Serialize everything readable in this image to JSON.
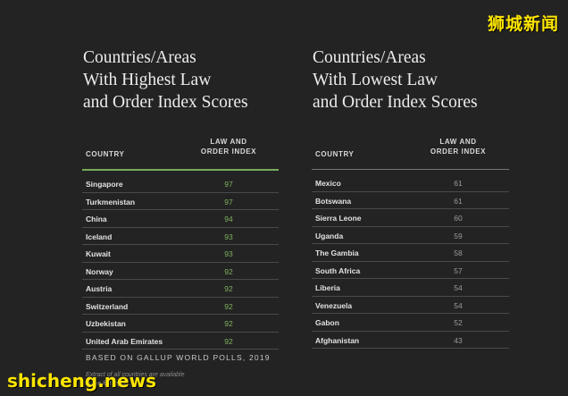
{
  "watermark_top": "狮城新闻",
  "watermark_bottom": "shicheng.news",
  "left_table": {
    "title": [
      "Countries/Areas",
      "With Highest Law",
      "and Order Index Scores"
    ],
    "col_country": "COUNTRY",
    "col_index": [
      "LAW AND",
      "ORDER INDEX"
    ],
    "rows": [
      {
        "country": "Singapore",
        "score": "97"
      },
      {
        "country": "Turkmenistan",
        "score": "97"
      },
      {
        "country": "China",
        "score": "94"
      },
      {
        "country": "Iceland",
        "score": "93"
      },
      {
        "country": "Kuwait",
        "score": "93"
      },
      {
        "country": "Norway",
        "score": "92"
      },
      {
        "country": "Austria",
        "score": "92"
      },
      {
        "country": "Switzerland",
        "score": "92"
      },
      {
        "country": "Uzbekistan",
        "score": "92"
      },
      {
        "country": "United Arab Emirates",
        "score": "92"
      }
    ]
  },
  "right_table": {
    "title": [
      "Countries/Areas",
      "With Lowest Law",
      "and Order Index Scores"
    ],
    "col_country": "COUNTRY",
    "col_index": [
      "LAW AND",
      "ORDER INDEX"
    ],
    "rows": [
      {
        "country": "Mexico",
        "score": "61"
      },
      {
        "country": "Botswana",
        "score": "61"
      },
      {
        "country": "Sierra Leone",
        "score": "60"
      },
      {
        "country": "Uganda",
        "score": "59"
      },
      {
        "country": "The Gambia",
        "score": "58"
      },
      {
        "country": "South Africa",
        "score": "57"
      },
      {
        "country": "Liberia",
        "score": "54"
      },
      {
        "country": "Venezuela",
        "score": "54"
      },
      {
        "country": "Gabon",
        "score": "52"
      },
      {
        "country": "Afghanistan",
        "score": "43"
      }
    ]
  },
  "source": "BASED ON GALLUP WORLD POLLS, 2019",
  "footnote": [
    "Extract of all countries are available",
    "in the full report."
  ],
  "colors": {
    "background": "#232323",
    "high_score": "#7fb35e",
    "low_score": "#9b9b9b",
    "watermark": "#ffe600"
  }
}
